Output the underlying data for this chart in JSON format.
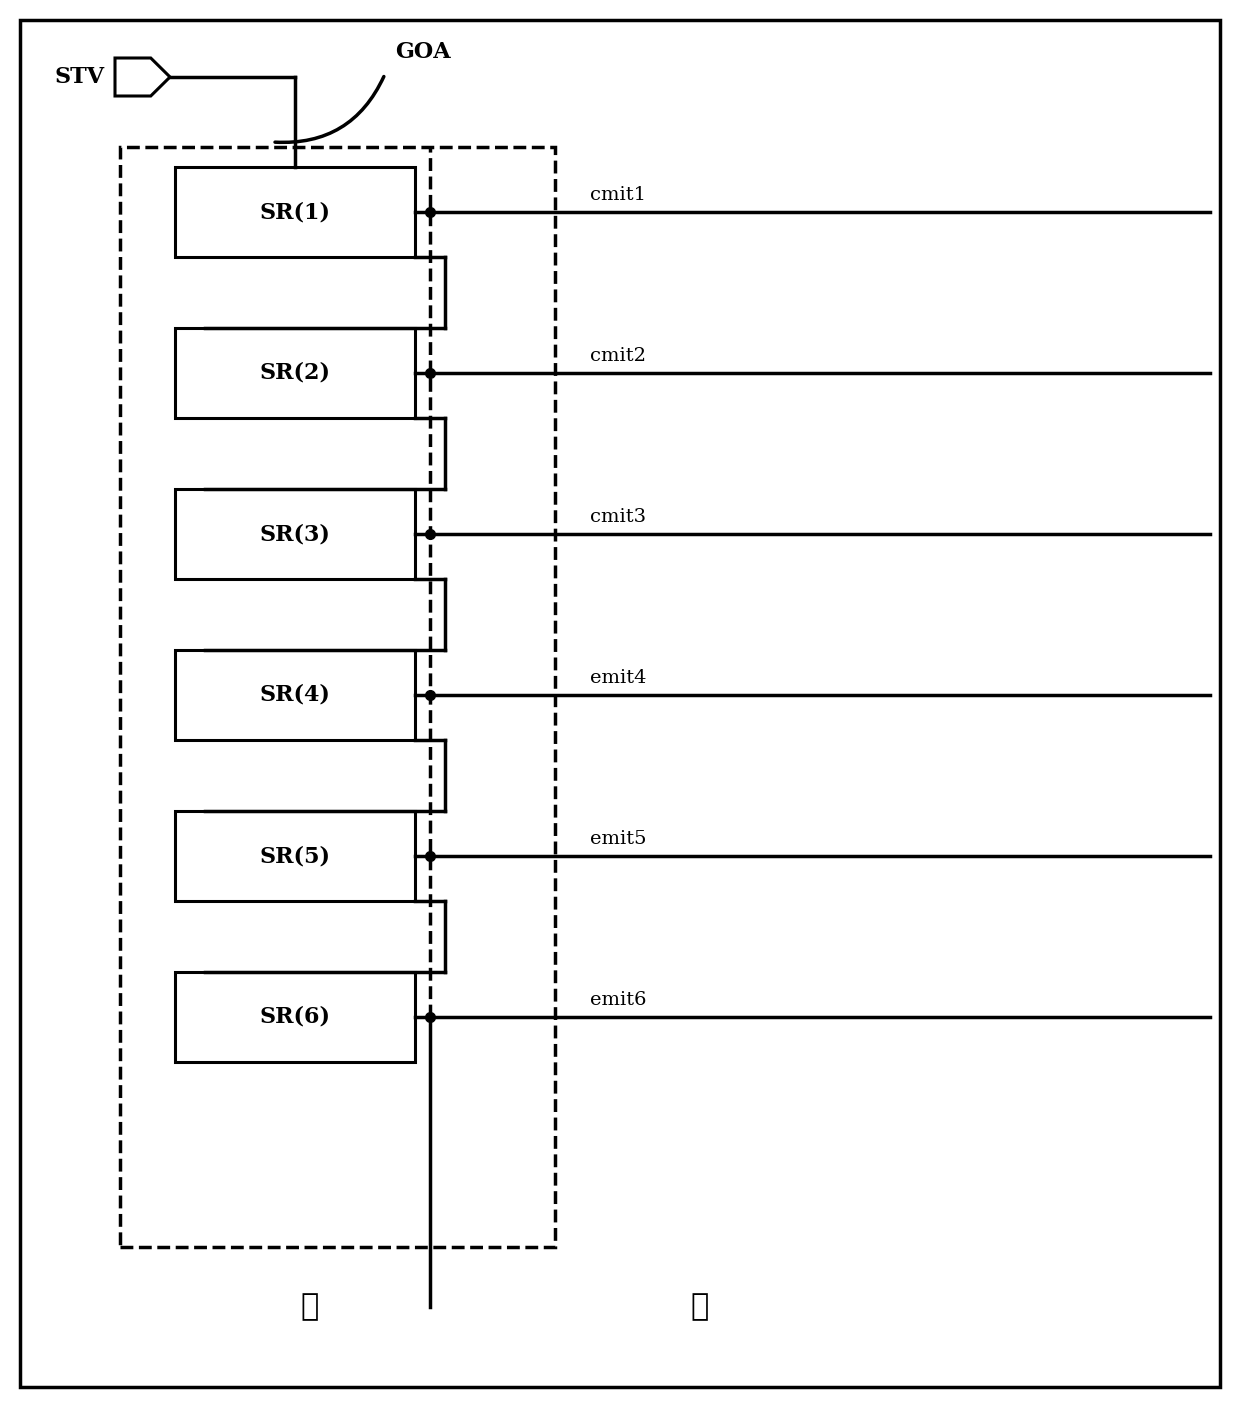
{
  "fig_width": 12.4,
  "fig_height": 14.07,
  "background_color": "#ffffff",
  "num_stages": 6,
  "stage_labels": [
    "SR(1)",
    "SR(2)",
    "SR(3)",
    "SR(4)",
    "SR(5)",
    "SR(6)"
  ],
  "emit_labels": [
    "cmit1",
    "cmit2",
    "cmit3",
    "emit4",
    "emit5",
    "emit6"
  ],
  "stv_label": "STV",
  "goa_label": "GOA",
  "dots_label": "⋮"
}
